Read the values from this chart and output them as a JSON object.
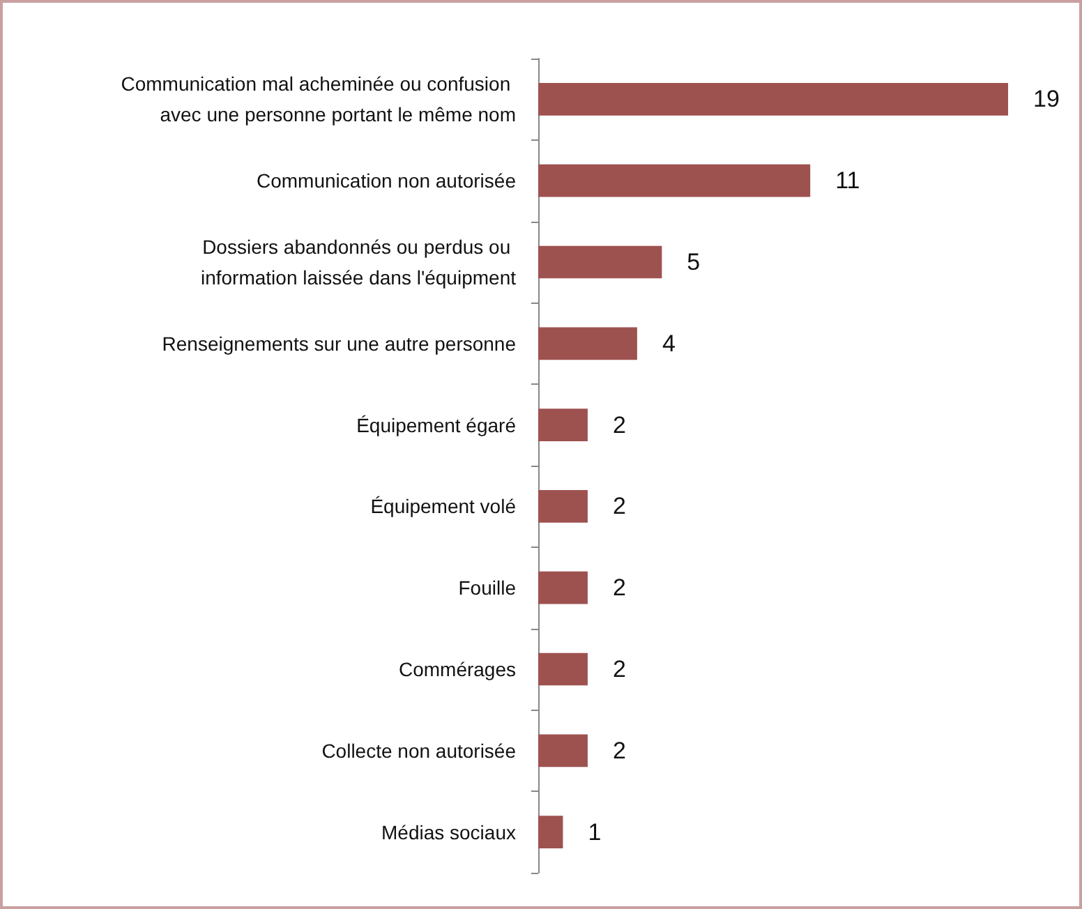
{
  "chart_data": {
    "type": "bar",
    "orientation": "horizontal",
    "data_labels": true,
    "categories": [
      "Communication mal acheminée ou confusion avec une personne portant le même nom",
      "Communication non autorisée",
      "Dossiers abandonnés ou perdus ou information laissée dans l'équipment",
      "Renseignements sur une autre personne",
      "Équipement égaré",
      "Équipement volé",
      "Fouille",
      "Commérages",
      "Collecte non autorisée",
      "Médias sociaux"
    ],
    "values": [
      19,
      11,
      5,
      4,
      2,
      2,
      2,
      2,
      2,
      1
    ],
    "color": "#9e5250"
  }
}
